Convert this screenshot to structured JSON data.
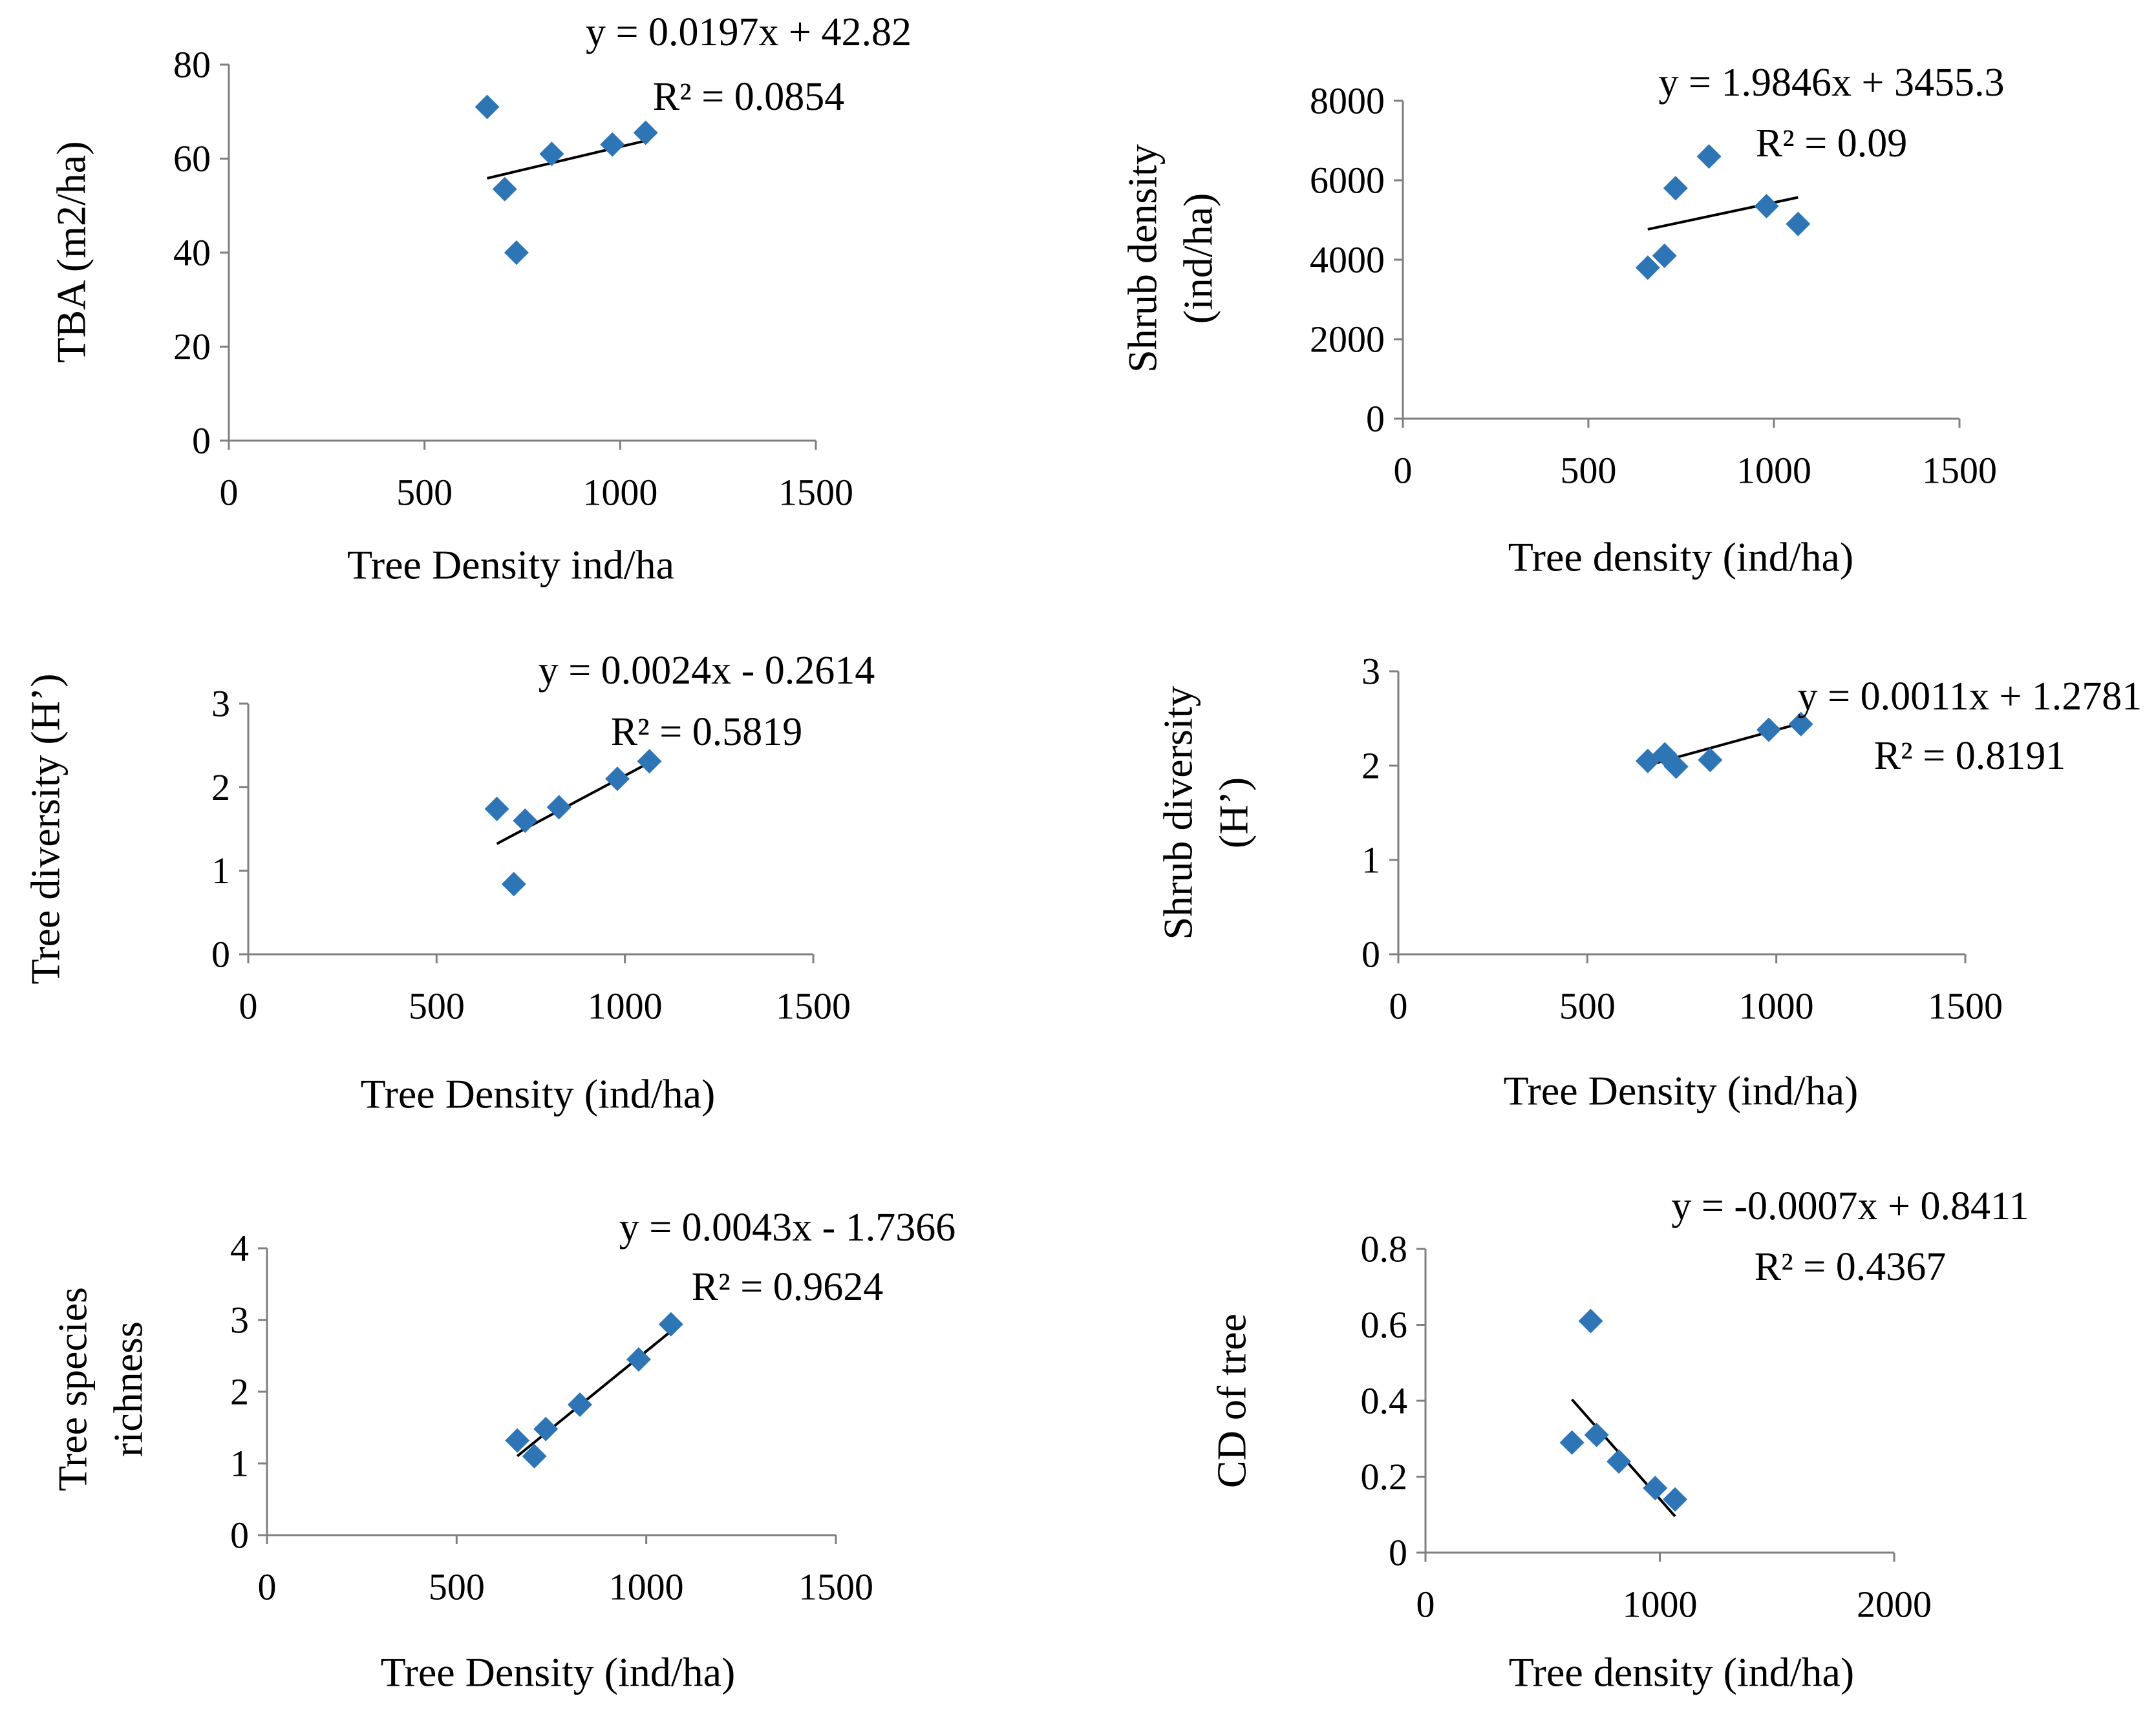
{
  "chart_data": [
    {
      "type": "scatter",
      "xlabel": "Tree Density  ind/ha",
      "ylabel": [
        "TBA  (m2/ha)"
      ],
      "xlim": [
        0,
        1500
      ],
      "ylim": [
        0,
        80
      ],
      "xticks": [
        "0",
        "500",
        "1000",
        "1500"
      ],
      "yticks": [
        "0",
        "20",
        "40",
        "60",
        "80"
      ],
      "marker_color": "#2e75b6",
      "grid": false,
      "legend": "none",
      "series": [
        {
          "x": [
            660,
            705,
            735,
            825,
            980,
            1065
          ],
          "y": [
            71,
            53.5,
            40,
            61,
            63,
            65.5
          ]
        }
      ],
      "trendline": {
        "slope": 0.0197,
        "intercept": 42.82,
        "x_range": [
          660,
          1065
        ]
      },
      "equation": "y = 0.0197x + 42.82",
      "r2": "R² = 0.0854"
    },
    {
      "type": "scatter",
      "xlabel": "Tree density (ind/ha)",
      "ylabel": [
        "Shrub density",
        "(ind/ha)"
      ],
      "xlim": [
        0,
        1500
      ],
      "ylim": [
        0,
        8000
      ],
      "xticks": [
        "0",
        "500",
        "1000",
        "1500"
      ],
      "yticks": [
        "0",
        "2000",
        "4000",
        "6000",
        "8000"
      ],
      "marker_color": "#2e75b6",
      "grid": false,
      "legend": "none",
      "series": [
        {
          "x": [
            660,
            705,
            735,
            825,
            980,
            1065
          ],
          "y": [
            3800,
            4100,
            5800,
            6600,
            5350,
            4900
          ]
        }
      ],
      "trendline": {
        "slope": 1.9846,
        "intercept": 3455.3,
        "x_range": [
          660,
          1065
        ]
      },
      "equation": "y = 1.9846x + 3455.3",
      "r2": "R² = 0.09"
    },
    {
      "type": "scatter",
      "xlabel": "Tree Density  (ind/ha)",
      "ylabel": [
        "Tree diversity (H’)"
      ],
      "xlim": [
        0,
        1500
      ],
      "ylim": [
        0,
        3
      ],
      "xticks": [
        "0",
        "500",
        "1000",
        "1500"
      ],
      "yticks": [
        "0",
        "1",
        "2",
        "3"
      ],
      "marker_color": "#2e75b6",
      "grid": false,
      "legend": "none",
      "series": [
        {
          "x": [
            660,
            705,
            735,
            825,
            980,
            1065
          ],
          "y": [
            1.74,
            0.84,
            1.6,
            1.76,
            2.1,
            2.31
          ]
        }
      ],
      "trendline": {
        "slope": 0.0024,
        "intercept": -0.2614,
        "x_range": [
          660,
          1065
        ]
      },
      "equation": "y = 0.0024x ‐ 0.2614",
      "r2": "R² = 0.5819"
    },
    {
      "type": "scatter",
      "xlabel": "Tree Density (ind/ha)",
      "ylabel": [
        "Shrub diversity",
        "(H’)"
      ],
      "xlim": [
        0,
        1500
      ],
      "ylim": [
        0,
        3
      ],
      "xticks": [
        "0",
        "500",
        "1000",
        "1500"
      ],
      "yticks": [
        "0",
        "1",
        "2",
        "3"
      ],
      "marker_color": "#2e75b6",
      "grid": false,
      "legend": "none",
      "series": [
        {
          "x": [
            660,
            705,
            735,
            825,
            980,
            1065
          ],
          "y": [
            2.05,
            2.12,
            1.99,
            2.06,
            2.38,
            2.44
          ]
        }
      ],
      "trendline": {
        "slope": 0.0011,
        "intercept": 1.2781,
        "x_range": [
          660,
          1065
        ]
      },
      "equation": "y = 0.0011x + 1.2781",
      "r2": "R² = 0.8191"
    },
    {
      "type": "scatter",
      "xlabel": "Tree Density (ind/ha)",
      "ylabel": [
        "Tree species",
        "richness"
      ],
      "xlim": [
        0,
        1500
      ],
      "ylim": [
        0,
        4
      ],
      "xticks": [
        "0",
        "500",
        "1000",
        "1500"
      ],
      "yticks": [
        "0",
        "1",
        "2",
        "3",
        "4"
      ],
      "marker_color": "#2e75b6",
      "grid": false,
      "legend": "none",
      "series": [
        {
          "x": [
            660,
            705,
            735,
            825,
            980,
            1065
          ],
          "y": [
            1.32,
            1.1,
            1.48,
            1.82,
            2.45,
            2.94
          ]
        }
      ],
      "trendline": {
        "slope": 0.0043,
        "intercept": -1.7366,
        "x_range": [
          660,
          1065
        ]
      },
      "equation": "y = 0.0043x ‐ 1.7366",
      "r2": "R² = 0.9624"
    },
    {
      "type": "scatter",
      "xlabel": "Tree density  (ind/ha)",
      "ylabel": [
        "CD of tree"
      ],
      "xlim": [
        0,
        2000
      ],
      "ylim": [
        0,
        0.8
      ],
      "xticks": [
        "0",
        "1000",
        "2000"
      ],
      "yticks": [
        "0",
        "0.2",
        "0.4",
        "0.6",
        "0.8"
      ],
      "marker_color": "#2e75b6",
      "grid": false,
      "legend": "none",
      "series": [
        {
          "x": [
            625,
            705,
            730,
            825,
            980,
            1065
          ],
          "y": [
            0.29,
            0.61,
            0.31,
            0.24,
            0.17,
            0.14
          ]
        }
      ],
      "trendline": {
        "slope": -0.0007,
        "intercept": 0.8411,
        "x_range": [
          625,
          1065
        ]
      },
      "equation": "y = -0.0007x + 0.8411",
      "r2": "R² = 0.4367"
    }
  ]
}
